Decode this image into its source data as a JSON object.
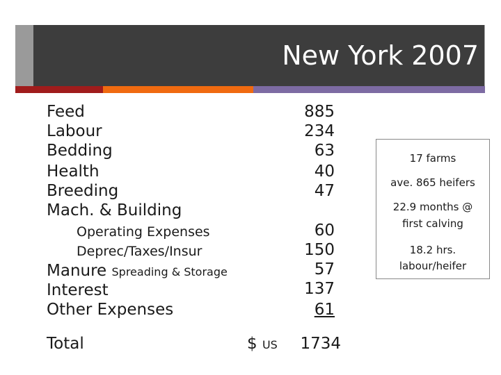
{
  "title": "New York 2007",
  "costs": [
    {
      "label": "Feed",
      "value": "885"
    },
    {
      "label": "Labour",
      "value": "234"
    },
    {
      "label": "Bedding",
      "value": "63"
    },
    {
      "label": "Health",
      "value": "40"
    },
    {
      "label": "Breeding",
      "value": "47"
    },
    {
      "label": "Mach. & Building",
      "value": ""
    },
    {
      "label": "Operating Expenses",
      "value": "60"
    },
    {
      "label": "Deprec/Taxes/Insur",
      "value": "150"
    },
    {
      "label": "Manure",
      "label_small": "Spreading & Storage",
      "value": "57"
    },
    {
      "label": "Interest",
      "value": "137"
    },
    {
      "label": "Other Expenses",
      "value": "61"
    }
  ],
  "total": {
    "label": "Total",
    "currency": "$",
    "currency_small": "US",
    "value": "1734"
  },
  "info_box": [
    "17 farms",
    "ave. 865 heifers",
    "22.9 months  @",
    "first calving",
    "18.2 hrs.",
    "labour/heifer"
  ],
  "colors": {
    "banner": "#3d3d3d",
    "stripe_red": "#a01c1c",
    "stripe_orange": "#f06a10",
    "stripe_purple": "#7d6ba3"
  }
}
